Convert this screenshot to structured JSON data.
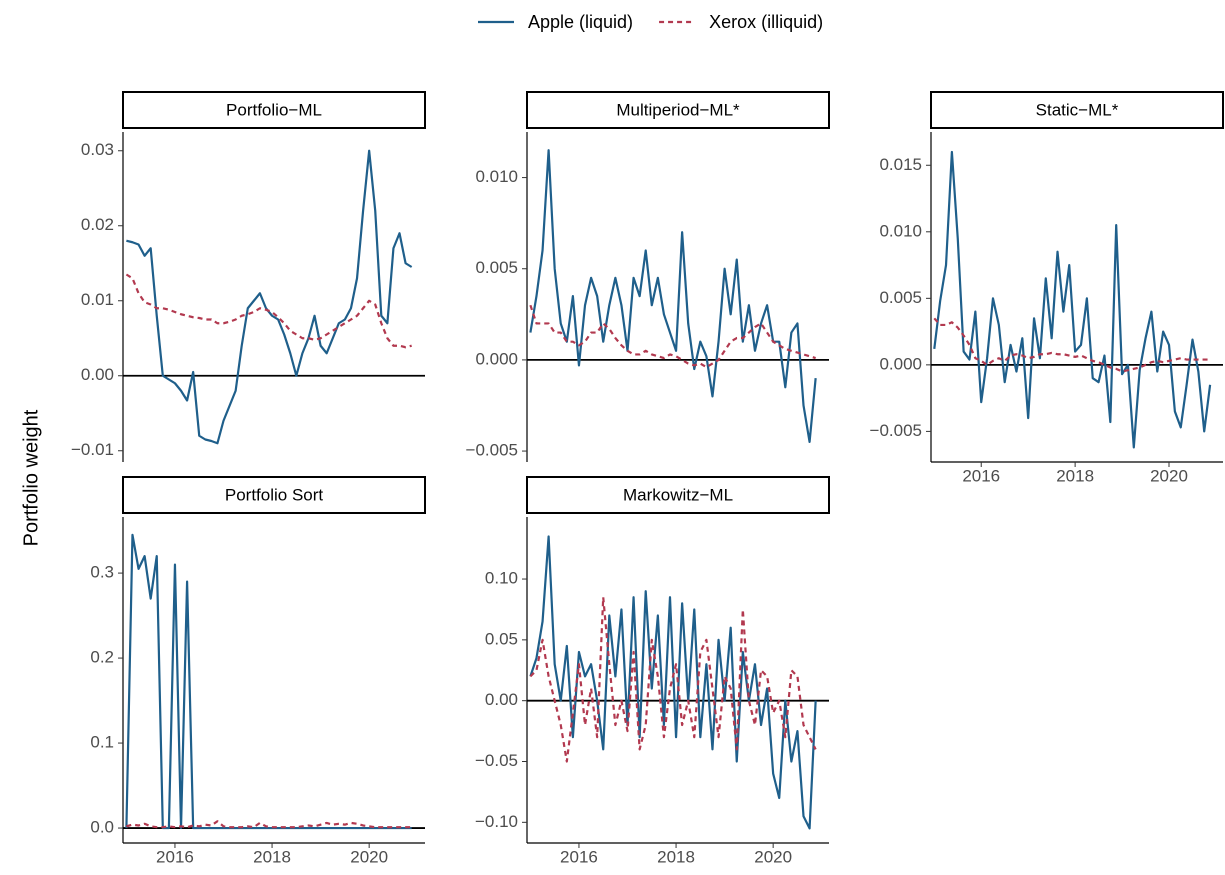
{
  "chart_data": [
    {
      "type": "line",
      "title": "Portfolio−ML",
      "ylabel": "Portfolio weight",
      "x": [
        2015,
        2015.125,
        2015.25,
        2015.375,
        2015.5,
        2015.625,
        2015.75,
        2015.875,
        2016,
        2016.125,
        2016.25,
        2016.375,
        2016.5,
        2016.625,
        2016.75,
        2016.875,
        2017,
        2017.125,
        2017.25,
        2017.375,
        2017.5,
        2017.625,
        2017.75,
        2017.875,
        2018,
        2018.125,
        2018.25,
        2018.375,
        2018.5,
        2018.625,
        2018.75,
        2018.875,
        2019,
        2019.125,
        2019.25,
        2019.375,
        2019.5,
        2019.625,
        2019.75,
        2019.875,
        2020,
        2020.125,
        2020.25,
        2020.375,
        2020.5,
        2020.625,
        2020.75,
        2020.875
      ],
      "series": [
        {
          "name": "Apple (liquid)",
          "color": "#1f5f8b",
          "linestyle": "solid",
          "values": [
            0.018,
            0.0178,
            0.0175,
            0.016,
            0.017,
            0.008,
            0.0,
            -0.0005,
            -0.001,
            -0.002,
            -0.0033,
            0.0005,
            -0.008,
            -0.0085,
            -0.0087,
            -0.009,
            -0.006,
            -0.004,
            -0.002,
            0.004,
            0.009,
            0.01,
            0.011,
            0.009,
            0.008,
            0.0075,
            0.0055,
            0.003,
            0.0,
            0.003,
            0.005,
            0.008,
            0.004,
            0.003,
            0.005,
            0.007,
            0.0075,
            0.009,
            0.013,
            0.022,
            0.03,
            0.022,
            0.008,
            0.007,
            0.017,
            0.019,
            0.015,
            0.0145
          ]
        },
        {
          "name": "Xerox (illiquid)",
          "color": "#b2394f",
          "linestyle": "dashed",
          "values": [
            0.0135,
            0.013,
            0.011,
            0.0098,
            0.0095,
            0.009,
            0.009,
            0.0088,
            0.0085,
            0.0082,
            0.008,
            0.0078,
            0.0077,
            0.0075,
            0.0075,
            0.007,
            0.007,
            0.0072,
            0.0075,
            0.008,
            0.0082,
            0.0085,
            0.009,
            0.0088,
            0.0085,
            0.0078,
            0.007,
            0.006,
            0.0055,
            0.005,
            0.005,
            0.0048,
            0.005,
            0.0055,
            0.006,
            0.0065,
            0.007,
            0.0075,
            0.008,
            0.009,
            0.01,
            0.0095,
            0.007,
            0.005,
            0.004,
            0.004,
            0.0038,
            0.004
          ]
        }
      ],
      "xlim": [
        2014.93,
        2021.15
      ],
      "ylim": [
        -0.0115,
        0.0325
      ],
      "yticks": [
        {
          "value": -0.01,
          "label": "−0.01"
        },
        {
          "value": 0,
          "label": "0.00"
        },
        0.01,
        0.02,
        0.03
      ]
    },
    {
      "type": "line",
      "title": "Multiperiod−ML*",
      "x": [
        2015,
        2015.125,
        2015.25,
        2015.375,
        2015.5,
        2015.625,
        2015.75,
        2015.875,
        2016,
        2016.125,
        2016.25,
        2016.375,
        2016.5,
        2016.625,
        2016.75,
        2016.875,
        2017,
        2017.125,
        2017.25,
        2017.375,
        2017.5,
        2017.625,
        2017.75,
        2017.875,
        2018,
        2018.125,
        2018.25,
        2018.375,
        2018.5,
        2018.625,
        2018.75,
        2018.875,
        2019,
        2019.125,
        2019.25,
        2019.375,
        2019.5,
        2019.625,
        2019.75,
        2019.875,
        2020,
        2020.125,
        2020.25,
        2020.375,
        2020.5,
        2020.625,
        2020.75,
        2020.875
      ],
      "series": [
        {
          "color": "#1f5f8b",
          "linestyle": "solid",
          "values": [
            0.0015,
            0.0035,
            0.006,
            0.0115,
            0.005,
            0.002,
            0.001,
            0.0035,
            -0.0003,
            0.003,
            0.0045,
            0.0035,
            0.001,
            0.003,
            0.0045,
            0.003,
            0.0005,
            0.0045,
            0.0035,
            0.006,
            0.003,
            0.0045,
            0.0025,
            0.0015,
            0.0005,
            0.007,
            0.002,
            -0.0005,
            0.001,
            0.0002,
            -0.002,
            0.001,
            0.005,
            0.0025,
            0.0055,
            0.001,
            0.003,
            0.0005,
            0.002,
            0.003,
            0.001,
            0.001,
            -0.0015,
            0.0015,
            0.002,
            -0.0025,
            -0.0045,
            -0.001
          ]
        },
        {
          "color": "#b2394f",
          "linestyle": "dashed",
          "values": [
            0.003,
            0.002,
            0.002,
            0.002,
            0.0015,
            0.0015,
            0.001,
            0.001,
            0.0008,
            0.001,
            0.0015,
            0.0015,
            0.002,
            0.0017,
            0.0012,
            0.0008,
            0.0005,
            0.0003,
            0.0003,
            0.0005,
            0.0003,
            0.0002,
            0.0001,
            0.0003,
            0.0002,
            0,
            -0.0002,
            -0.0003,
            -0.0002,
            -0.0004,
            -0.0002,
            0,
            0.0005,
            0.001,
            0.0012,
            0.0012,
            0.0015,
            0.0018,
            0.002,
            0.0015,
            0.001,
            0.0008,
            0.0006,
            0.0005,
            0.0004,
            0.0003,
            0.0002,
            0.0001
          ]
        }
      ],
      "xlim": [
        2014.93,
        2021.15
      ],
      "ylim": [
        -0.0056,
        0.0125
      ],
      "yticks": [
        {
          "value": -0.005,
          "label": "−0.005"
        },
        {
          "value": 0,
          "label": "0.000"
        },
        0.005,
        {
          "value": 0.01,
          "label": "0.010"
        }
      ]
    },
    {
      "type": "line",
      "title": "Static−ML*",
      "x": [
        2015,
        2015.125,
        2015.25,
        2015.375,
        2015.5,
        2015.625,
        2015.75,
        2015.875,
        2016,
        2016.125,
        2016.25,
        2016.375,
        2016.5,
        2016.625,
        2016.75,
        2016.875,
        2017,
        2017.125,
        2017.25,
        2017.375,
        2017.5,
        2017.625,
        2017.75,
        2017.875,
        2018,
        2018.125,
        2018.25,
        2018.375,
        2018.5,
        2018.625,
        2018.75,
        2018.875,
        2019,
        2019.125,
        2019.25,
        2019.375,
        2019.5,
        2019.625,
        2019.75,
        2019.875,
        2020,
        2020.125,
        2020.25,
        2020.375,
        2020.5,
        2020.625,
        2020.75,
        2020.875
      ],
      "series": [
        {
          "color": "#1f5f8b",
          "linestyle": "solid",
          "values": [
            0.0012,
            0.0048,
            0.0075,
            0.016,
            0.0095,
            0.001,
            0.0004,
            0.004,
            -0.0028,
            0.0005,
            0.005,
            0.003,
            -0.0013,
            0.0015,
            -0.0005,
            0.002,
            -0.004,
            0.0035,
            0.0005,
            0.0065,
            0.002,
            0.0085,
            0.004,
            0.0075,
            0.001,
            0.0015,
            0.005,
            -0.001,
            -0.0013,
            0.0007,
            -0.0043,
            0.0105,
            -0.0007,
            0,
            -0.0062,
            -0.0004,
            0.002,
            0.004,
            -0.0005,
            0.0025,
            0.0015,
            -0.0035,
            -0.0047,
            -0.0015,
            0.0019,
            -0.0005,
            -0.005,
            -0.0015
          ]
        },
        {
          "color": "#b2394f",
          "linestyle": "dashed",
          "values": [
            0.0035,
            0.003,
            0.003,
            0.0032,
            0.0028,
            0.0022,
            0.0015,
            0.0005,
            0.0003,
            0,
            0.0003,
            0.0005,
            0.0003,
            0.0007,
            0.0008,
            0.0007,
            0.0005,
            0.0006,
            0.0008,
            0.0008,
            0.0009,
            0.0008,
            0.0008,
            0.0007,
            0.0006,
            0.0007,
            0.0005,
            0.0003,
            0.0002,
            0,
            -0.0002,
            -0.0003,
            -0.0005,
            -0.0004,
            -0.0003,
            -0.0002,
            0,
            0.0002,
            0.0003,
            0.0002,
            0.0003,
            0.0004,
            0.0005,
            0.0004,
            0.0004,
            0.0004,
            0.0004,
            0.0004
          ]
        }
      ],
      "xlim": [
        2014.93,
        2021.15
      ],
      "ylim": [
        -0.0073,
        0.0175
      ],
      "xticks": [
        2016,
        2018,
        2020
      ],
      "yticks": [
        {
          "value": -0.005,
          "label": "−0.005"
        },
        {
          "value": 0,
          "label": "0.000"
        },
        0.005,
        {
          "value": 0.01,
          "label": "0.010"
        },
        0.015
      ]
    },
    {
      "type": "line",
      "title": "Portfolio Sort",
      "x": [
        2015,
        2015.125,
        2015.25,
        2015.375,
        2015.5,
        2015.625,
        2015.75,
        2015.875,
        2016,
        2016.125,
        2016.25,
        2016.375,
        2016.5,
        2016.625,
        2016.75,
        2016.875,
        2017,
        2017.125,
        2017.25,
        2017.375,
        2017.5,
        2017.625,
        2017.75,
        2017.875,
        2018,
        2018.125,
        2018.25,
        2018.375,
        2018.5,
        2018.625,
        2018.75,
        2018.875,
        2019,
        2019.125,
        2019.25,
        2019.375,
        2019.5,
        2019.625,
        2019.75,
        2019.875,
        2020,
        2020.125,
        2020.25,
        2020.375,
        2020.5,
        2020.625,
        2020.75,
        2020.875
      ],
      "series": [
        {
          "color": "#1f5f8b",
          "linestyle": "solid",
          "values": [
            0,
            0.345,
            0.305,
            0.32,
            0.27,
            0.32,
            0,
            0,
            0.31,
            0,
            0.29,
            0,
            0,
            0,
            0,
            0,
            0,
            0,
            0,
            0,
            0,
            0,
            0,
            0,
            0,
            0,
            0,
            0,
            0,
            0,
            0,
            0,
            0,
            0,
            0,
            0,
            0,
            0,
            0,
            0,
            0,
            0,
            0,
            0,
            0,
            0,
            0,
            0
          ]
        },
        {
          "color": "#b2394f",
          "linestyle": "dashed",
          "values": [
            0.002,
            0.004,
            0.003,
            0.005,
            0.002,
            0.001,
            0.001,
            0.002,
            0.001,
            0.002,
            0.001,
            0.003,
            0.002,
            0.004,
            0.003,
            0.008,
            0.002,
            0.001,
            0.001,
            0.001,
            0.002,
            0.001,
            0.006,
            0.002,
            0.001,
            0.001,
            0.001,
            0.001,
            0.001,
            0.002,
            0.003,
            0.002,
            0.004,
            0.006,
            0.004,
            0.005,
            0.004,
            0.006,
            0.005,
            0.003,
            0.002,
            0.001,
            0.001,
            0.001,
            0.001,
            0.001,
            0.001,
            0.001
          ]
        }
      ],
      "xlim": [
        2014.93,
        2021.15
      ],
      "ylim": [
        -0.0176,
        0.366
      ],
      "xticks": [
        2016,
        2018,
        2020
      ],
      "yticks": [
        {
          "value": 0,
          "label": "0.0"
        },
        0.1,
        0.2,
        0.3
      ]
    },
    {
      "type": "line",
      "title": "Markowitz−ML",
      "x": [
        2015,
        2015.125,
        2015.25,
        2015.375,
        2015.5,
        2015.625,
        2015.75,
        2015.875,
        2016,
        2016.125,
        2016.25,
        2016.375,
        2016.5,
        2016.625,
        2016.75,
        2016.875,
        2017,
        2017.125,
        2017.25,
        2017.375,
        2017.5,
        2017.625,
        2017.75,
        2017.875,
        2018,
        2018.125,
        2018.25,
        2018.375,
        2018.5,
        2018.625,
        2018.75,
        2018.875,
        2019,
        2019.125,
        2019.25,
        2019.375,
        2019.5,
        2019.625,
        2019.75,
        2019.875,
        2020,
        2020.125,
        2020.25,
        2020.375,
        2020.5,
        2020.625,
        2020.75,
        2020.875
      ],
      "series": [
        {
          "color": "#1f5f8b",
          "linestyle": "solid",
          "values": [
            0.02,
            0.035,
            0.065,
            0.135,
            0.03,
            0,
            0.045,
            -0.03,
            0.04,
            0.02,
            0.03,
            0,
            -0.04,
            0.07,
            0.02,
            0.075,
            -0.02,
            0.085,
            -0.03,
            0.09,
            0.01,
            0.07,
            -0.02,
            0.085,
            -0.03,
            0.08,
            0,
            0.075,
            -0.03,
            0.03,
            -0.04,
            0.05,
            0,
            0.06,
            -0.05,
            0.04,
            0,
            0.03,
            -0.02,
            0.01,
            -0.06,
            -0.08,
            0,
            -0.05,
            -0.025,
            -0.095,
            -0.105,
            0
          ]
        },
        {
          "color": "#b2394f",
          "linestyle": "dashed",
          "values": [
            0.02,
            0.025,
            0.05,
            0.02,
            0,
            -0.02,
            -0.05,
            -0.01,
            0.03,
            -0.02,
            0.01,
            -0.03,
            0.085,
            0.03,
            -0.02,
            0,
            -0.025,
            0.04,
            -0.04,
            -0.02,
            0.05,
            0.02,
            -0.03,
            0.01,
            0.03,
            -0.02,
            0,
            -0.03,
            0.04,
            0.05,
            0.01,
            -0.03,
            0.02,
            0.01,
            -0.04,
            0.075,
            0,
            -0.02,
            0.025,
            0.02,
            -0.01,
            0,
            -0.03,
            0.025,
            0.02,
            -0.02,
            -0.03,
            -0.04
          ]
        }
      ],
      "xlim": [
        2014.93,
        2021.15
      ],
      "ylim": [
        -0.117,
        0.151
      ],
      "xticks": [
        2016,
        2018,
        2020
      ],
      "yticks": [
        {
          "value": -0.1,
          "label": "−0.10"
        },
        {
          "value": -0.05,
          "label": "−0.05"
        },
        {
          "value": 0,
          "label": "0.00"
        },
        0.05,
        {
          "value": 0.1,
          "label": "0.10"
        }
      ]
    }
  ]
}
